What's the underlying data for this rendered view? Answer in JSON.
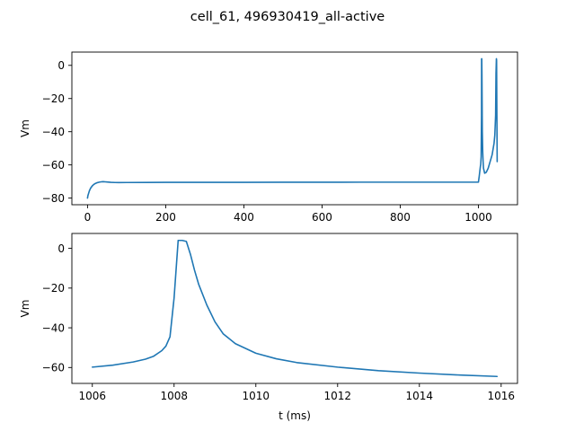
{
  "figure": {
    "title": "cell_61, 496930419_all-active"
  },
  "chart_data": [
    {
      "type": "line",
      "title": "",
      "xlabel": "",
      "ylabel": "Vm",
      "xlim": [
        -40,
        1100
      ],
      "ylim": [
        -84,
        8
      ],
      "xticks": [
        0,
        200,
        400,
        600,
        800,
        1000
      ],
      "yticks": [
        0,
        -20,
        -40,
        -60,
        -80
      ],
      "grid": false,
      "legend": "none",
      "series": [
        {
          "color": "#1f77b4",
          "x": [
            0,
            1,
            3,
            5,
            8,
            12,
            16,
            20,
            25,
            30,
            35,
            40,
            45,
            50,
            60,
            70,
            80,
            100,
            150,
            200,
            300,
            400,
            500,
            600,
            700,
            800,
            900,
            1000,
            1002,
            1004,
            1005,
            1006,
            1007,
            1008,
            1008.2,
            1008.6,
            1009,
            1010,
            1011,
            1012,
            1013,
            1016,
            1020,
            1025,
            1030,
            1035,
            1040,
            1042,
            1044,
            1045,
            1046,
            1046.5,
            1047,
            1048
          ],
          "y": [
            -80,
            -78.5,
            -77,
            -75.5,
            -74,
            -72.7,
            -71.8,
            -71.2,
            -70.7,
            -70.4,
            -70.2,
            -70.1,
            -70.2,
            -70.3,
            -70.5,
            -70.6,
            -70.65,
            -70.6,
            -70.55,
            -70.5,
            -70.5,
            -70.5,
            -70.45,
            -70.45,
            -70.4,
            -70.4,
            -70.4,
            -70.4,
            -67,
            -63,
            -61,
            -59.5,
            -55,
            -30,
            4,
            4,
            -5,
            -40,
            -52,
            -58,
            -62,
            -65,
            -64.5,
            -62,
            -58,
            -54,
            -47,
            -42,
            -30,
            -5,
            4,
            3,
            -20,
            -58
          ]
        }
      ]
    },
    {
      "type": "line",
      "title": "",
      "xlabel": "t (ms)",
      "ylabel": "Vm",
      "xlim": [
        1005.5,
        1016.4
      ],
      "ylim": [
        -68,
        7.5
      ],
      "xticks": [
        1006,
        1008,
        1010,
        1012,
        1014,
        1016
      ],
      "yticks": [
        0,
        -20,
        -40,
        -60
      ],
      "grid": false,
      "legend": "none",
      "series": [
        {
          "color": "#1f77b4",
          "x": [
            1006,
            1006.5,
            1007,
            1007.3,
            1007.5,
            1007.7,
            1007.8,
            1007.9,
            1008,
            1008.1,
            1008.2,
            1008.3,
            1008.4,
            1008.5,
            1008.6,
            1008.8,
            1009,
            1009.2,
            1009.5,
            1010,
            1010.5,
            1011,
            1012,
            1013,
            1014,
            1015,
            1015.9
          ],
          "y": [
            -59.8,
            -58.8,
            -57.2,
            -55.8,
            -54.3,
            -51.5,
            -49.2,
            -44.5,
            -25,
            4,
            4,
            3.5,
            -3,
            -11,
            -18,
            -28.5,
            -37,
            -43,
            -48,
            -52.8,
            -55.6,
            -57.5,
            -59.8,
            -61.6,
            -62.8,
            -63.8,
            -64.5
          ]
        }
      ]
    }
  ]
}
